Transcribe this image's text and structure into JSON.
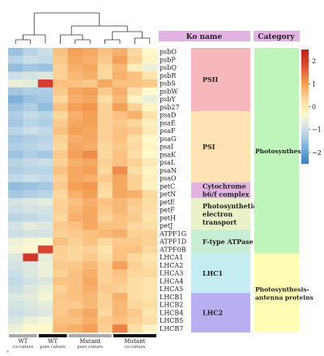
{
  "chart_data": {
    "type": "heatmap",
    "title": "",
    "xlabel": "",
    "ylabel": "",
    "header": {
      "ko_name": "Ko name",
      "category": "Category"
    },
    "rows": [
      "psbO",
      "psbP",
      "psbQ",
      "psbR",
      "psbS",
      "psbW",
      "psbY",
      "psb27",
      "psaD",
      "psaE",
      "psaF",
      "psaG",
      "psaI",
      "psaK",
      "psaL",
      "psaN",
      "psaO",
      "petC",
      "petN",
      "petE",
      "petF",
      "petH",
      "petJ",
      "ATPF1G",
      "ATPF1D",
      "ATPF0B",
      "LHCA1",
      "LHCA2",
      "LHCA3",
      "LHCA4",
      "LHCA5",
      "LHCB1",
      "LHCB2",
      "LHCB4",
      "LHCB5",
      "LHCB7"
    ],
    "values": [
      [
        -1.5,
        -1.2,
        -1.0,
        0.6,
        1.0,
        0.9,
        0.6,
        0.8,
        0.3,
        -0.3
      ],
      [
        -1.2,
        -1.0,
        -1.1,
        0.5,
        0.9,
        0.8,
        0.5,
        1.0,
        0.4,
        -0.2
      ],
      [
        -1.6,
        -1.4,
        -1.5,
        0.4,
        0.8,
        0.9,
        0.3,
        0.7,
        -0.1,
        -0.6
      ],
      [
        -1.0,
        -0.9,
        -0.8,
        0.4,
        0.7,
        0.8,
        0.3,
        0.8,
        0.6,
        0.1
      ],
      [
        -0.6,
        -0.7,
        2.0,
        0.6,
        0.6,
        0.5,
        0.9,
        0.6,
        0.6,
        0.5
      ],
      [
        -1.4,
        -1.3,
        -1.3,
        0.5,
        0.9,
        1.0,
        0.5,
        0.8,
        0.2,
        -0.4
      ],
      [
        -1.8,
        -1.5,
        -1.4,
        0.3,
        0.8,
        0.9,
        0.2,
        0.7,
        -0.2,
        -0.6
      ],
      [
        -1.5,
        -1.3,
        -1.6,
        0.6,
        1.0,
        1.1,
        0.4,
        1.0,
        0.4,
        -0.2
      ],
      [
        -1.3,
        -1.1,
        -1.2,
        0.3,
        0.8,
        1.0,
        0.4,
        0.6,
        0.8,
        0.1
      ],
      [
        -1.4,
        -1.2,
        -1.3,
        0.5,
        0.9,
        1.0,
        0.4,
        0.5,
        0.3,
        -0.1
      ],
      [
        -1.2,
        -1.0,
        -1.1,
        0.6,
        1.0,
        0.9,
        0.4,
        0.6,
        0.5,
        0.0
      ],
      [
        -1.4,
        -1.3,
        -1.2,
        0.4,
        0.8,
        0.9,
        0.4,
        0.6,
        0.2,
        -0.3
      ],
      [
        -1.3,
        -1.2,
        -1.1,
        0.3,
        0.9,
        0.8,
        0.3,
        0.5,
        0.3,
        -0.2
      ],
      [
        -1.5,
        -1.3,
        -1.4,
        0.5,
        1.0,
        1.2,
        0.3,
        0.6,
        0.2,
        -0.3
      ],
      [
        -1.2,
        -1.1,
        -1.0,
        0.4,
        0.8,
        0.9,
        0.4,
        0.6,
        0.4,
        0.0
      ],
      [
        -1.3,
        -1.2,
        -1.2,
        0.6,
        0.9,
        1.0,
        0.3,
        1.2,
        0.2,
        -0.2
      ],
      [
        -1.1,
        -1.0,
        -1.1,
        0.4,
        0.9,
        0.8,
        0.5,
        0.9,
        0.4,
        -0.1
      ],
      [
        -1.6,
        -1.5,
        -1.4,
        0.5,
        1.0,
        1.1,
        0.3,
        0.9,
        0.4,
        -0.2
      ],
      [
        -1.4,
        -1.3,
        -1.2,
        0.3,
        0.8,
        1.0,
        0.2,
        0.9,
        0.8,
        0.3
      ],
      [
        -0.9,
        -0.8,
        -0.7,
        0.4,
        0.6,
        0.8,
        0.6,
        0.7,
        0.5,
        0.2
      ],
      [
        -1.0,
        -0.9,
        -0.9,
        0.4,
        0.7,
        0.9,
        0.5,
        0.7,
        0.4,
        0.2
      ],
      [
        -1.2,
        -1.1,
        -1.0,
        0.3,
        0.8,
        0.9,
        0.4,
        0.6,
        0.5,
        0.1
      ],
      [
        -0.9,
        -0.7,
        -0.8,
        0.5,
        0.6,
        0.9,
        0.6,
        0.6,
        0.3,
        0.2
      ],
      [
        -1.0,
        -0.9,
        -0.9,
        0.4,
        0.5,
        0.6,
        0.7,
        0.8,
        0.4,
        0.4
      ],
      [
        -0.6,
        -0.5,
        -0.4,
        0.6,
        0.4,
        0.6,
        0.3,
        0.5,
        0.5,
        0.4
      ],
      [
        -0.5,
        -0.4,
        1.9,
        0.4,
        0.3,
        0.4,
        0.1,
        0.6,
        0.6,
        0.3
      ],
      [
        -0.8,
        2.1,
        -0.7,
        0.4,
        0.3,
        0.5,
        0.2,
        0.6,
        0.3,
        0.1
      ],
      [
        -0.9,
        -0.8,
        -0.6,
        0.5,
        0.5,
        0.7,
        0.4,
        1.0,
        0.4,
        0.2
      ],
      [
        -1.0,
        -0.8,
        -0.6,
        0.4,
        0.6,
        0.8,
        0.4,
        0.6,
        0.3,
        0.3
      ],
      [
        -1.1,
        -0.9,
        -0.8,
        0.6,
        0.6,
        0.9,
        0.4,
        0.5,
        0.2,
        0.1
      ],
      [
        -1.0,
        -0.8,
        -0.6,
        0.4,
        0.6,
        0.8,
        0.5,
        0.4,
        0.2,
        0.1
      ],
      [
        -0.8,
        -0.7,
        -0.5,
        0.5,
        0.6,
        0.7,
        0.4,
        0.8,
        0.2,
        0.1
      ],
      [
        -0.9,
        -0.8,
        -0.7,
        0.5,
        0.5,
        0.7,
        0.4,
        0.7,
        0.3,
        0.2
      ],
      [
        -1.0,
        -0.9,
        -0.8,
        0.5,
        0.7,
        0.9,
        0.3,
        0.7,
        0.5,
        0.1
      ],
      [
        -0.8,
        -0.6,
        -0.5,
        0.6,
        0.6,
        0.8,
        0.5,
        0.6,
        0.4,
        0.2
      ],
      [
        -0.6,
        -0.4,
        -0.3,
        0.7,
        0.8,
        1.0,
        0.4,
        1.3,
        0.2,
        -0.2
      ]
    ],
    "color_scale": {
      "min": -2.5,
      "max": 2.5,
      "ticks": [
        2,
        1,
        0,
        -1,
        -2
      ],
      "colors": [
        "#3a7bbd",
        "#7fb2da",
        "#c6dbe8",
        "#fffbd0",
        "#fdd59a",
        "#f39a4e",
        "#e24a33",
        "#c21f1f"
      ]
    },
    "ko_groups": [
      {
        "label": "PSII",
        "rows": [
          0,
          7
        ],
        "color": "#f7b8bd"
      },
      {
        "label": "PSI",
        "rows": [
          8,
          16
        ],
        "color": "#fde3b4"
      },
      {
        "label": "Cytochrome b6/f complex",
        "rows": [
          17,
          18
        ],
        "color": "#e1b4e0"
      },
      {
        "label": "Photosynthetic electron transport",
        "rows": [
          19,
          22
        ],
        "color": "#e9f1c7"
      },
      {
        "label": "F-type ATPase",
        "rows": [
          23,
          25
        ],
        "color": "#c9ecd4"
      },
      {
        "label": "LHC1",
        "rows": [
          26,
          30
        ],
        "color": "#c4ecf3"
      },
      {
        "label": "LHC2",
        "rows": [
          31,
          35
        ],
        "color": "#b9aef0"
      }
    ],
    "categories": [
      {
        "label": "Photosynthesis",
        "rows": [
          0,
          25
        ],
        "color": "#bff5bb"
      },
      {
        "label": "Photosynthesis-antenna proteins",
        "rows": [
          26,
          35
        ],
        "color": "#fffcb3"
      }
    ],
    "sample_groups": [
      {
        "label": "WT",
        "sublabel": "co-culture",
        "cols": [
          0,
          1
        ],
        "bar_color": "#aaaaaa"
      },
      {
        "label": "WT",
        "sublabel": "pure culture",
        "cols": [
          2,
          3
        ],
        "bar_color": "#111111"
      },
      {
        "label": "Mutant",
        "sublabel": "pure culture",
        "cols": [
          4,
          6
        ],
        "bar_color": "#aaaaaa"
      },
      {
        "label": "Mutant",
        "sublabel": "co-culture",
        "cols": [
          7,
          9
        ],
        "bar_color": "#111111"
      }
    ]
  }
}
